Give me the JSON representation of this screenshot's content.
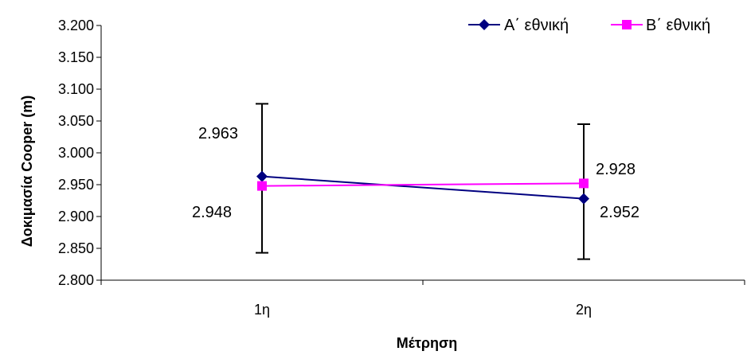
{
  "chart_data": {
    "type": "line",
    "title": "",
    "xlabel": "Μέτρηση",
    "ylabel": "Δοκιμασία Cooper (m)",
    "categories": [
      "1η",
      "2η"
    ],
    "ylim": [
      2.8,
      3.2
    ],
    "ytick_values": [
      2.8,
      2.85,
      2.9,
      2.95,
      3.0,
      3.05,
      3.1,
      3.15,
      3.2
    ],
    "ytick_labels": [
      "2.800",
      "2.850",
      "2.900",
      "2.950",
      "3.000",
      "3.050",
      "3.100",
      "3.150",
      "3.200"
    ],
    "grid": false,
    "legend_position": "top-right",
    "series": [
      {
        "name": "Α΄ εθνική",
        "values": [
          2.963,
          2.928
        ],
        "color": "#000080",
        "marker": "diamond",
        "error_bars": [
          {
            "low": 2.843,
            "high": 3.077
          },
          {
            "low": 2.833,
            "high": 3.045
          }
        ]
      },
      {
        "name": "Β΄ εθνική",
        "values": [
          2.948,
          2.952
        ],
        "color": "#ff00ff",
        "marker": "square"
      }
    ],
    "data_labels": [
      "2.963",
      "2.948",
      "2.928",
      "2.952"
    ]
  }
}
